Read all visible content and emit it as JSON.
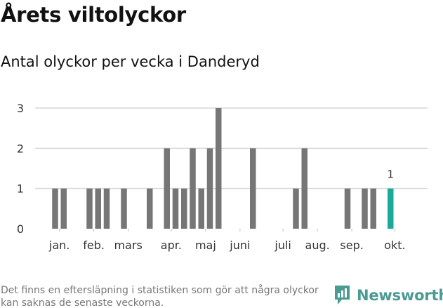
{
  "title": "Årets viltolyckor",
  "subtitle": "Antal olyckor per vecka i Danderyd",
  "footnote": "Det finns en eftersläpning i statistiken som gör att några olyckor kan saknas de senaste veckorna.",
  "brand": {
    "name": "Newsworthy",
    "icon": "newsworthy-logo-icon",
    "color": "#4a9b93"
  },
  "chart_data": {
    "type": "bar",
    "title": "Antal olyckor per vecka i Danderyd",
    "xlabel": "",
    "ylabel": "",
    "ylim": [
      0,
      3
    ],
    "yticks": [
      0,
      1,
      2,
      3
    ],
    "grid": true,
    "x": [
      2,
      3,
      6,
      7,
      8,
      10,
      13,
      15,
      16,
      17,
      18,
      19,
      20,
      21,
      25,
      30,
      31,
      36,
      38,
      39,
      41
    ],
    "values": [
      1,
      1,
      1,
      1,
      1,
      1,
      1,
      2,
      1,
      1,
      2,
      1,
      2,
      3,
      2,
      1,
      2,
      1,
      1,
      1,
      1
    ],
    "highlight_index": 20,
    "highlight_label": "1",
    "month_labels": [
      {
        "label": "jan.",
        "week": 2.5
      },
      {
        "label": "feb.",
        "week": 6.5
      },
      {
        "label": "mars",
        "week": 10.5
      },
      {
        "label": "apr.",
        "week": 15.5
      },
      {
        "label": "maj",
        "week": 19.5
      },
      {
        "label": "juni",
        "week": 23.5
      },
      {
        "label": "juli",
        "week": 28.5
      },
      {
        "label": "aug.",
        "week": 32.5
      },
      {
        "label": "sep.",
        "week": 36.5
      },
      {
        "label": "okt.",
        "week": 41.5
      }
    ],
    "colors": {
      "bar": "#767676",
      "highlight": "#1aaa9b",
      "grid": "#d6d6d6",
      "axis_text": "#333333"
    }
  }
}
